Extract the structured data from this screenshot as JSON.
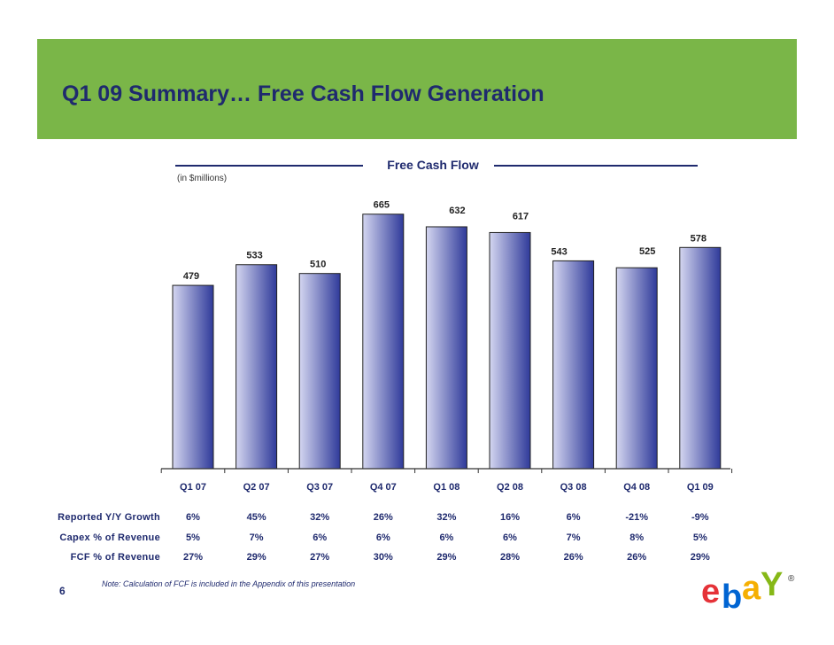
{
  "slide": {
    "title": "Q1 09 Summary… Free Cash Flow Generation",
    "page_number": "6",
    "footnote": "Note:  Calculation of FCF is included in the Appendix of this presentation",
    "colors": {
      "banner": "#7ab648",
      "title": "#1f2a6e",
      "bar_dark": "#2f3a9a",
      "bar_light": "#d4d6f0"
    }
  },
  "chart_data": {
    "type": "bar",
    "title": "Free Cash Flow",
    "subtitle": "(in $millions)",
    "categories": [
      "Q1 07",
      "Q2 07",
      "Q3 07",
      "Q4 07",
      "Q1 08",
      "Q2 08",
      "Q3 08",
      "Q4 08",
      "Q1 09"
    ],
    "values": [
      479,
      533,
      510,
      665,
      632,
      617,
      543,
      525,
      578
    ],
    "value_labels": [
      "479",
      "533",
      "510",
      "665",
      "632",
      "617",
      "543",
      "525",
      "578"
    ],
    "xlabel": "",
    "ylabel": "",
    "ylim": [
      0,
      750
    ],
    "grid": false,
    "legend": "none"
  },
  "metrics": [
    {
      "label": "Reported Y/Y Growth",
      "values": [
        "6%",
        "45%",
        "32%",
        "26%",
        "32%",
        "16%",
        "6%",
        "-21%",
        "-9%"
      ]
    },
    {
      "label": "Capex % of Revenue",
      "values": [
        "5%",
        "7%",
        "6%",
        "6%",
        "6%",
        "6%",
        "7%",
        "8%",
        "5%"
      ]
    },
    {
      "label": "FCF % of Revenue",
      "values": [
        "27%",
        "29%",
        "27%",
        "30%",
        "29%",
        "28%",
        "26%",
        "26%",
        "29%"
      ]
    }
  ],
  "logo": {
    "text": "ebay",
    "registered": "®"
  }
}
